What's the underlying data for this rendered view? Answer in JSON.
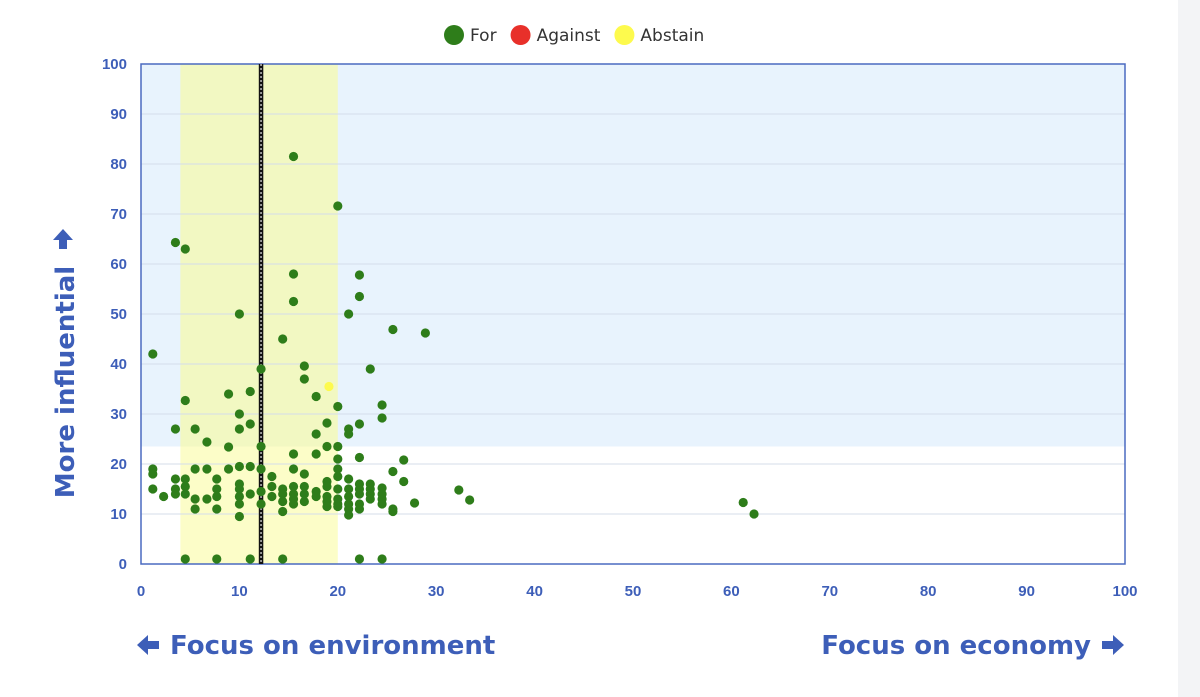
{
  "chart_data": {
    "type": "scatter",
    "legend": {
      "placement": "top-center",
      "items": [
        {
          "label": "For",
          "color": "#2e7d1a"
        },
        {
          "label": "Against",
          "color": "#e8302a"
        },
        {
          "label": "Abstain",
          "color": "#fdfa4d"
        }
      ]
    },
    "xlabel_left": "Focus on environment",
    "xlabel_right": "Focus on economy",
    "ylabel": "More influential",
    "xlim": [
      0,
      100
    ],
    "ylim": [
      0,
      100
    ],
    "x_ticks": [
      0,
      10,
      20,
      30,
      40,
      50,
      60,
      70,
      80,
      90,
      100
    ],
    "y_ticks": [
      0,
      10,
      20,
      30,
      40,
      50,
      60,
      70,
      80,
      90,
      100
    ],
    "grid": true,
    "regions": [
      {
        "name": "influential-band",
        "y_range": [
          23.5,
          100
        ],
        "color": "#e8f3fd"
      },
      {
        "name": "highlight-band",
        "x_range": [
          4,
          20
        ],
        "color": "#f2f8c2",
        "color_lower": "#fcfdc8"
      }
    ],
    "reference_line": {
      "x": 12.2,
      "style": "dotted"
    },
    "series": [
      {
        "name": "For",
        "color": "#2e7d1a",
        "points": [
          [
            1.2,
            42
          ],
          [
            1.2,
            19
          ],
          [
            1.2,
            18
          ],
          [
            1.2,
            15
          ],
          [
            2.3,
            13.5
          ],
          [
            3.5,
            64.3
          ],
          [
            3.5,
            27
          ],
          [
            3.5,
            17
          ],
          [
            3.5,
            15
          ],
          [
            3.5,
            14
          ],
          [
            4.5,
            63
          ],
          [
            4.5,
            32.7
          ],
          [
            4.5,
            17
          ],
          [
            4.5,
            15.5
          ],
          [
            4.5,
            14
          ],
          [
            4.5,
            1
          ],
          [
            5.5,
            27
          ],
          [
            5.5,
            19
          ],
          [
            5.5,
            13
          ],
          [
            5.5,
            11
          ],
          [
            6.7,
            24.4
          ],
          [
            6.7,
            19
          ],
          [
            6.7,
            13
          ],
          [
            7.7,
            17
          ],
          [
            7.7,
            15
          ],
          [
            7.7,
            13.5
          ],
          [
            7.7,
            11
          ],
          [
            7.7,
            1
          ],
          [
            8.9,
            34
          ],
          [
            8.9,
            23.4
          ],
          [
            8.9,
            19
          ],
          [
            10,
            50
          ],
          [
            10,
            30
          ],
          [
            10,
            27
          ],
          [
            10,
            19.5
          ],
          [
            10,
            16
          ],
          [
            10,
            15
          ],
          [
            10,
            13.5
          ],
          [
            10,
            12
          ],
          [
            10,
            9.5
          ],
          [
            11.1,
            34.5
          ],
          [
            11.1,
            28
          ],
          [
            11.1,
            19.5
          ],
          [
            11.1,
            14
          ],
          [
            11.1,
            1
          ],
          [
            12.2,
            39
          ],
          [
            12.2,
            23.5
          ],
          [
            12.2,
            19
          ],
          [
            12.2,
            14.5
          ],
          [
            12.2,
            12
          ],
          [
            13.3,
            17.5
          ],
          [
            13.3,
            15.5
          ],
          [
            13.3,
            13.5
          ],
          [
            14.4,
            45
          ],
          [
            14.4,
            15
          ],
          [
            14.4,
            14
          ],
          [
            14.4,
            12.5
          ],
          [
            14.4,
            10.5
          ],
          [
            14.4,
            1
          ],
          [
            15.5,
            81.5
          ],
          [
            15.5,
            58
          ],
          [
            15.5,
            52.5
          ],
          [
            15.5,
            22
          ],
          [
            15.5,
            19
          ],
          [
            15.5,
            15.5
          ],
          [
            15.5,
            14
          ],
          [
            15.5,
            13
          ],
          [
            15.5,
            12
          ],
          [
            16.6,
            39.6
          ],
          [
            16.6,
            37
          ],
          [
            16.6,
            18
          ],
          [
            16.6,
            15.5
          ],
          [
            16.6,
            14
          ],
          [
            16.6,
            12.5
          ],
          [
            17.8,
            33.5
          ],
          [
            17.8,
            26
          ],
          [
            17.8,
            22
          ],
          [
            17.8,
            14.5
          ],
          [
            17.8,
            13.5
          ],
          [
            18.9,
            28.2
          ],
          [
            18.9,
            23.5
          ],
          [
            18.9,
            16.5
          ],
          [
            18.9,
            15.5
          ],
          [
            18.9,
            13.5
          ],
          [
            18.9,
            12.5
          ],
          [
            18.9,
            11.5
          ],
          [
            20,
            71.6
          ],
          [
            20,
            31.5
          ],
          [
            20,
            23.5
          ],
          [
            20,
            21
          ],
          [
            20,
            19
          ],
          [
            20,
            17.5
          ],
          [
            20,
            15
          ],
          [
            20,
            13
          ],
          [
            20,
            12
          ],
          [
            20,
            11.5
          ],
          [
            21.1,
            50
          ],
          [
            21.1,
            27
          ],
          [
            21.1,
            26
          ],
          [
            21.1,
            17
          ],
          [
            21.1,
            15
          ],
          [
            21.1,
            13.5
          ],
          [
            21.1,
            12
          ],
          [
            21.1,
            11
          ],
          [
            21.1,
            9.8
          ],
          [
            22.2,
            57.8
          ],
          [
            22.2,
            53.5
          ],
          [
            22.2,
            28
          ],
          [
            22.2,
            21.3
          ],
          [
            22.2,
            16
          ],
          [
            22.2,
            15
          ],
          [
            22.2,
            14
          ],
          [
            22.2,
            12
          ],
          [
            22.2,
            11
          ],
          [
            22.2,
            1
          ],
          [
            23.3,
            39
          ],
          [
            23.3,
            16
          ],
          [
            23.3,
            15
          ],
          [
            23.3,
            14
          ],
          [
            23.3,
            13
          ],
          [
            24.5,
            31.8
          ],
          [
            24.5,
            29.2
          ],
          [
            24.5,
            15.2
          ],
          [
            24.5,
            14
          ],
          [
            24.5,
            13
          ],
          [
            24.5,
            12
          ],
          [
            24.5,
            1
          ],
          [
            25.6,
            46.9
          ],
          [
            25.6,
            18.5
          ],
          [
            25.6,
            11
          ],
          [
            25.6,
            10.5
          ],
          [
            26.7,
            20.8
          ],
          [
            26.7,
            16.5
          ],
          [
            27.8,
            12.2
          ],
          [
            28.9,
            46.2
          ],
          [
            32.3,
            14.8
          ],
          [
            33.4,
            12.8
          ],
          [
            61.2,
            12.3
          ],
          [
            62.3,
            10
          ]
        ]
      },
      {
        "name": "Against",
        "color": "#e8302a",
        "points": []
      },
      {
        "name": "Abstain",
        "color": "#fdfa4d",
        "points": [
          [
            19.1,
            35.5
          ]
        ]
      }
    ]
  }
}
